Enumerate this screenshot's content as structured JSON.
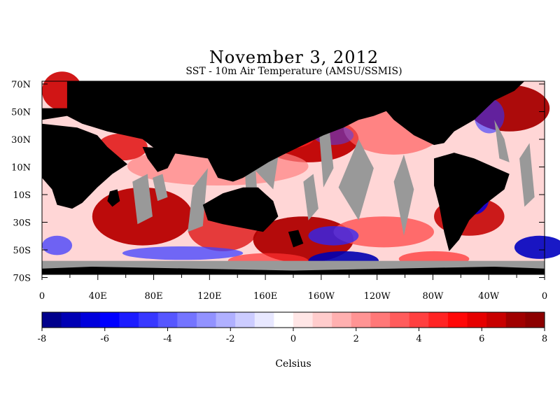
{
  "title": "November 3, 2012",
  "subtitle": "SST - 10m Air Temperature (AMSU/SSMIS)",
  "lat_labels": [
    "70N",
    "50N",
    "30N",
    "10N",
    "10S",
    "30S",
    "50S",
    "70S"
  ],
  "lon_labels": [
    "0",
    "40E",
    "80E",
    "120E",
    "160E",
    "160W",
    "120W",
    "80W",
    "40W",
    "0"
  ],
  "colorbar": {
    "ticks": [
      "-8",
      "-6",
      "-4",
      "-2",
      "0",
      "2",
      "4",
      "6",
      "8"
    ],
    "label": "Celsius",
    "range": [
      -8,
      8
    ],
    "colors": [
      "#00008c",
      "#0000b4",
      "#0000dc",
      "#0000ff",
      "#1c1cff",
      "#3838ff",
      "#5656ff",
      "#7474ff",
      "#9292ff",
      "#b0b0ff",
      "#ccccff",
      "#e8e8ff",
      "#ffffff",
      "#ffe6e6",
      "#ffcccc",
      "#ffb0b0",
      "#ff9494",
      "#ff7878",
      "#ff5c5c",
      "#ff4040",
      "#ff2424",
      "#ff0808",
      "#e60000",
      "#c80000",
      "#a00000",
      "#8c0000"
    ]
  },
  "colors": {
    "land": "#000000",
    "missing": "#999999"
  }
}
